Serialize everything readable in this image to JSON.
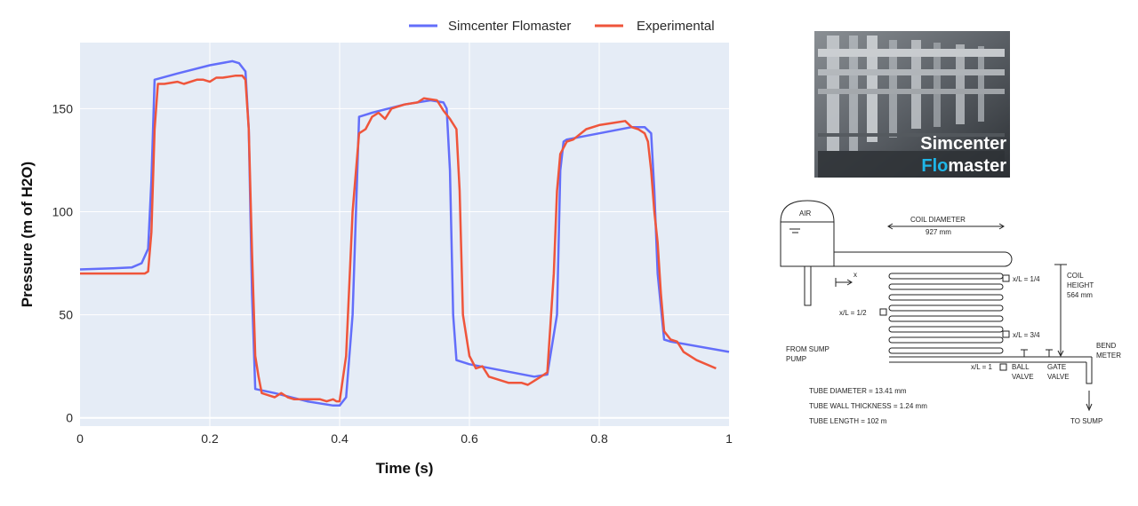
{
  "chart_data": {
    "type": "line",
    "xlabel": "Time (s)",
    "ylabel": "Pressure (m of H2O)",
    "xlim": [
      0,
      1
    ],
    "ylim": [
      -4,
      182
    ],
    "xticks": [
      0,
      0.2,
      0.4,
      0.6,
      0.8,
      1
    ],
    "xtick_labels": [
      "0",
      "0.2",
      "0.4",
      "0.6",
      "0.8",
      "1"
    ],
    "yticks": [
      0,
      50,
      100,
      150
    ],
    "ytick_labels": [
      "0",
      "50",
      "100",
      "150"
    ],
    "grid": true,
    "legend_position": "top-right",
    "series": [
      {
        "name": "Simcenter Flomaster",
        "color": "#636efa",
        "x": [
          0,
          0.05,
          0.08,
          0.095,
          0.105,
          0.11,
          0.115,
          0.15,
          0.2,
          0.235,
          0.245,
          0.255,
          0.26,
          0.265,
          0.27,
          0.3,
          0.35,
          0.39,
          0.4,
          0.41,
          0.42,
          0.43,
          0.45,
          0.5,
          0.54,
          0.56,
          0.565,
          0.57,
          0.575,
          0.58,
          0.6,
          0.65,
          0.7,
          0.72,
          0.735,
          0.74,
          0.745,
          0.75,
          0.8,
          0.85,
          0.87,
          0.88,
          0.885,
          0.89,
          0.9,
          0.91,
          1.0
        ],
        "y": [
          72,
          72.5,
          73,
          75,
          82,
          115,
          164,
          167,
          171,
          173,
          172,
          168,
          140,
          60,
          14,
          12,
          8,
          6,
          6,
          10,
          50,
          146,
          148,
          152,
          154,
          153,
          150,
          120,
          50,
          28,
          26,
          23,
          20,
          21,
          50,
          120,
          134,
          135,
          138,
          141,
          141,
          138,
          110,
          70,
          38,
          37,
          32
        ]
      },
      {
        "name": "Experimental",
        "color": "#ef553b",
        "x": [
          0,
          0.05,
          0.1,
          0.105,
          0.11,
          0.115,
          0.12,
          0.13,
          0.15,
          0.16,
          0.18,
          0.19,
          0.2,
          0.21,
          0.22,
          0.24,
          0.25,
          0.255,
          0.26,
          0.265,
          0.27,
          0.275,
          0.28,
          0.29,
          0.3,
          0.31,
          0.32,
          0.33,
          0.35,
          0.37,
          0.38,
          0.39,
          0.395,
          0.4,
          0.41,
          0.42,
          0.43,
          0.44,
          0.45,
          0.46,
          0.47,
          0.48,
          0.5,
          0.52,
          0.53,
          0.55,
          0.56,
          0.57,
          0.58,
          0.585,
          0.59,
          0.6,
          0.61,
          0.62,
          0.63,
          0.66,
          0.68,
          0.69,
          0.7,
          0.71,
          0.72,
          0.73,
          0.735,
          0.74,
          0.75,
          0.76,
          0.78,
          0.8,
          0.82,
          0.84,
          0.85,
          0.86,
          0.87,
          0.875,
          0.88,
          0.885,
          0.89,
          0.895,
          0.9,
          0.91,
          0.92,
          0.93,
          0.95,
          0.98
        ],
        "y": [
          70,
          70,
          70,
          71,
          90,
          140,
          162,
          162,
          163,
          162,
          164,
          164,
          163,
          165,
          165,
          166,
          166,
          164,
          140,
          80,
          30,
          20,
          12,
          11,
          10,
          12,
          10,
          9,
          9,
          9,
          8,
          9,
          8,
          8,
          30,
          100,
          138,
          140,
          146,
          148,
          145,
          150,
          152,
          153,
          155,
          154,
          149,
          145,
          140,
          110,
          50,
          30,
          24,
          25,
          20,
          17,
          17,
          16,
          18,
          20,
          22,
          70,
          110,
          128,
          134,
          135,
          140,
          142,
          143,
          144,
          141,
          140,
          138,
          134,
          120,
          100,
          85,
          60,
          42,
          38,
          37,
          32,
          28,
          24
        ]
      }
    ]
  },
  "sidebar": {
    "photo": {
      "label_line1": "Simcenter",
      "label_line2_highlight": "Flo",
      "label_line2_rest": "master",
      "highlight_color": "#1fb6e8"
    },
    "diagram": {
      "air": "AIR",
      "coil_diameter_label": "COIL DIAMETER",
      "coil_diameter_value": "927 mm",
      "x_marker": "x",
      "xl_quarter": "x/L = 1/4",
      "xl_half": "x/L = 1/2",
      "xl_three_quarter": "x/L = 3/4",
      "xl_one": "x/L = 1",
      "coil_height_1": "COIL",
      "coil_height_2": "HEIGHT",
      "coil_height_3": "564 mm",
      "from_sump_1": "FROM SUMP",
      "from_sump_2": "PUMP",
      "bend_meter_1": "BEND",
      "bend_meter_2": "METER",
      "ball_valve_1": "BALL",
      "ball_valve_2": "VALVE",
      "gate_valve_1": "GATE",
      "gate_valve_2": "VALVE",
      "to_sump": "TO SUMP",
      "tube_diameter": "TUBE DIAMETER = 13.41 mm",
      "tube_wall": "TUBE WALL THICKNESS = 1.24 mm",
      "tube_length": "TUBE LENGTH = 102 m"
    }
  }
}
